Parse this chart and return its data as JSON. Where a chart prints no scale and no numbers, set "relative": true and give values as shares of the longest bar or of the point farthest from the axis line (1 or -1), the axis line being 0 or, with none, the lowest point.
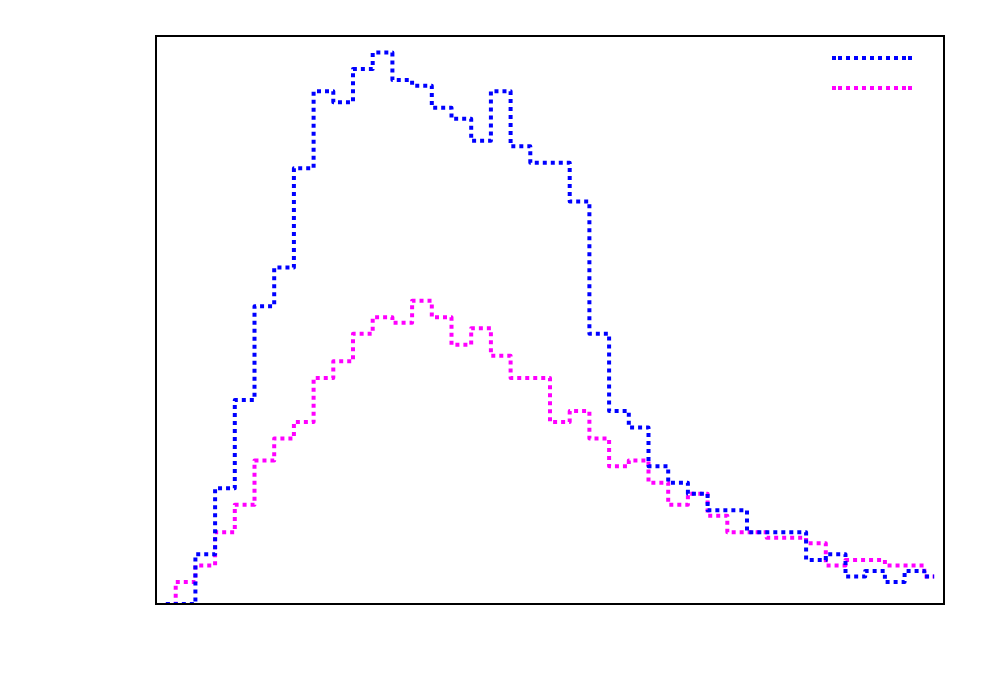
{
  "chart_data": {
    "type": "step",
    "relative": true,
    "line_style": "dotted",
    "marker": "none",
    "grid": false,
    "categories": [
      null,
      null,
      null,
      null,
      null,
      null,
      null,
      null,
      null,
      null,
      null,
      null,
      null,
      null,
      null,
      null,
      null,
      null,
      null,
      null,
      null,
      null,
      null,
      null,
      null,
      null,
      null,
      null,
      null,
      null,
      null,
      null,
      null,
      null,
      null,
      null,
      null,
      null,
      null,
      null
    ],
    "series": [
      {
        "color": "#0000ff",
        "values": [
          0,
          0,
          0.09,
          0.21,
          0.37,
          0.54,
          0.61,
          0.79,
          0.93,
          0.91,
          0.97,
          1,
          0.95,
          0.94,
          0.9,
          0.88,
          0.84,
          0.93,
          0.83,
          0.8,
          0.8,
          0.73,
          0.49,
          0.35,
          0.32,
          0.25,
          0.22,
          0.2,
          0.17,
          0.17,
          0.13,
          0.13,
          0.13,
          0.08,
          0.09,
          0.05,
          0.06,
          0.04,
          0.06,
          0.05
        ]
      },
      {
        "color": "#ff00ff",
        "values": [
          0,
          0.04,
          0.07,
          0.13,
          0.18,
          0.26,
          0.3,
          0.33,
          0.41,
          0.44,
          0.49,
          0.52,
          0.51,
          0.55,
          0.52,
          0.47,
          0.5,
          0.45,
          0.41,
          0.41,
          0.33,
          0.35,
          0.3,
          0.25,
          0.26,
          0.22,
          0.18,
          0.2,
          0.16,
          0.13,
          0.13,
          0.12,
          0.12,
          0.11,
          0.07,
          0.08,
          0.08,
          0.07,
          0.07,
          0.05
        ]
      }
    ]
  }
}
